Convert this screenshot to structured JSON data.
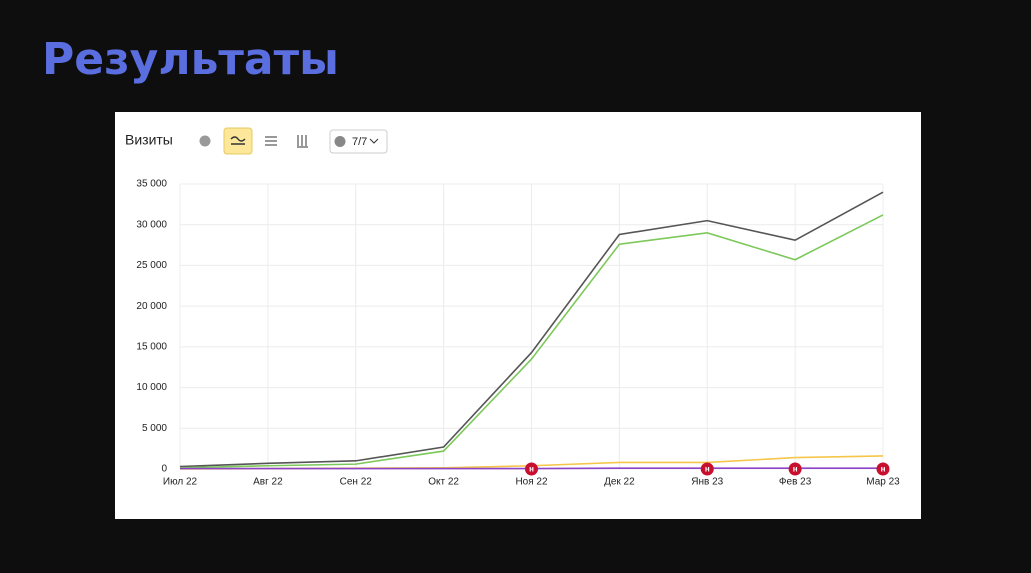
{
  "title": "Результаты",
  "chart_data": {
    "type": "line",
    "title": "Визиты",
    "filter_label": "7/7",
    "categories": [
      "Июл 22",
      "Авг 22",
      "Сен 22",
      "Окт 22",
      "Ноя 22",
      "Дек 22",
      "Янв 23",
      "Фев 23",
      "Мар 23"
    ],
    "series": [
      {
        "color": "#555555",
        "values": [
          300,
          700,
          1000,
          2700,
          14300,
          28800,
          30500,
          28100,
          34000
        ]
      },
      {
        "color": "#7cc85a",
        "values": [
          150,
          400,
          600,
          2200,
          13500,
          27600,
          29000,
          25700,
          31200
        ]
      },
      {
        "color": "#f5c64a",
        "values": [
          0,
          50,
          100,
          150,
          400,
          800,
          800,
          1400,
          1600
        ]
      },
      {
        "color": "#8e44c9",
        "values": [
          50,
          50,
          50,
          50,
          50,
          100,
          100,
          100,
          100
        ]
      }
    ],
    "ylim": [
      0,
      35000
    ],
    "yticks": [
      0,
      {
        "value": 5000,
        "label": "5 000"
      },
      {
        "value": 10000,
        "label": "10 000"
      },
      {
        "value": 15000,
        "label": "15 000"
      },
      {
        "value": 20000,
        "label": "20 000"
      },
      {
        "value": 25000,
        "label": "25 000"
      },
      {
        "value": 30000,
        "label": "30 000"
      },
      {
        "value": 35000,
        "label": "35 000"
      }
    ],
    "grid": true,
    "annotations": [
      {
        "category": "Ноя 22",
        "label": "н"
      },
      {
        "category": "Янв 23",
        "label": "н"
      },
      {
        "category": "Фев 23",
        "label": "н"
      },
      {
        "category": "Мар 23",
        "label": "н"
      }
    ]
  }
}
